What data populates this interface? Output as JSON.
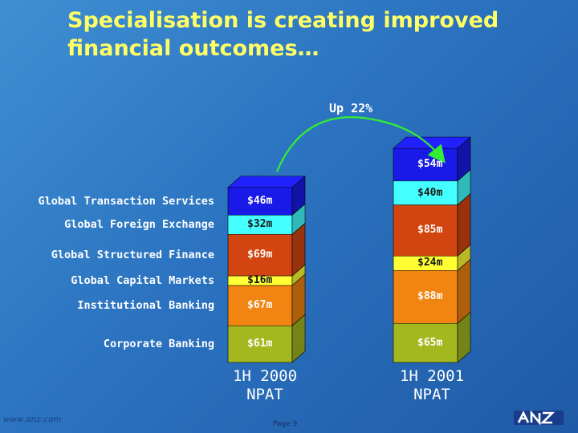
{
  "title": "Specialisation is creating improved financial outcomes…",
  "change_label": "Up 22%",
  "footer": {
    "url": "www.anz.com",
    "page": "Page 9",
    "logo_text": "ANZ"
  },
  "colors": {
    "background": "#2b73c0",
    "title": "#ffff66",
    "arrow": "#33ee33"
  },
  "chart_data": {
    "type": "bar",
    "stacked": true,
    "categories": [
      "1H 2000 NPAT",
      "1H 2001 NPAT"
    ],
    "category_lines": [
      [
        "1H 2000",
        "NPAT"
      ],
      [
        "1H 2001",
        "NPAT"
      ]
    ],
    "series": [
      {
        "name": "Corporate Banking",
        "values": [
          61,
          65
        ],
        "labels": [
          "$61m",
          "$65m"
        ],
        "color": "#a3b81e"
      },
      {
        "name": "Institutional Banking",
        "values": [
          67,
          88
        ],
        "labels": [
          "$67m",
          "$88m"
        ],
        "color": "#f28412"
      },
      {
        "name": "Global Capital Markets",
        "values": [
          16,
          24
        ],
        "labels": [
          "$16m",
          "$24m"
        ],
        "color": "#ffff33"
      },
      {
        "name": "Global Structured Finance",
        "values": [
          69,
          85
        ],
        "labels": [
          "$69m",
          "$85m"
        ],
        "color": "#d24510"
      },
      {
        "name": "Global Foreign Exchange",
        "values": [
          32,
          40
        ],
        "labels": [
          "$32m",
          "$40m"
        ],
        "color": "#44ffff"
      },
      {
        "name": "Global Transaction Services",
        "values": [
          46,
          54
        ],
        "labels": [
          "$46m",
          "$54m"
        ],
        "color": "#1a1ae8"
      }
    ],
    "annotation": "Up 22%"
  }
}
